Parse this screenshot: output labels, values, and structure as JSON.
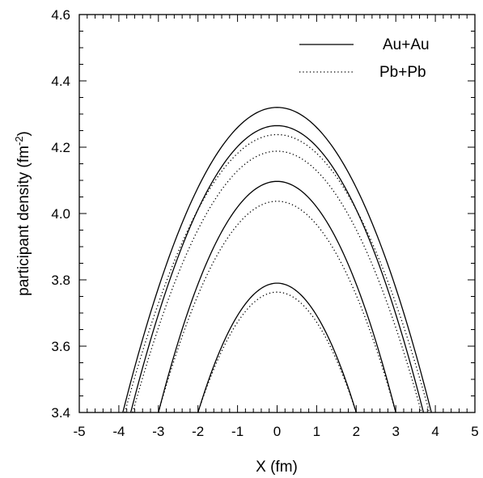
{
  "chart_data": {
    "type": "line",
    "title": "",
    "xlabel": "X (fm)",
    "ylabel": {
      "main": "participant density (fm",
      "sup": "-2",
      "close": ")"
    },
    "xlim": [
      -5,
      5
    ],
    "ylim": [
      3.4,
      4.6
    ],
    "xticks": [
      "-5",
      "-4",
      "-3",
      "-2",
      "-1",
      "0",
      "1",
      "2",
      "3",
      "4",
      "5"
    ],
    "yticks": [
      "3.4",
      "3.6",
      "3.8",
      "4.0",
      "4.2",
      "4.4",
      "4.6"
    ],
    "grid": false,
    "legend_position": "top-right",
    "series": [
      {
        "name": "Au+Au",
        "style": "solid",
        "curves": [
          {
            "peak": 4.32,
            "x_at_bottom": 3.9
          },
          {
            "peak": 4.265,
            "x_at_bottom": 3.7
          },
          {
            "peak": 4.097,
            "x_at_bottom": 3.0
          },
          {
            "peak": 3.79,
            "x_at_bottom": 2.0
          }
        ]
      },
      {
        "name": "Pb+Pb",
        "style": "dotted",
        "curves": [
          {
            "peak": 4.238,
            "x_at_bottom": 3.85
          },
          {
            "peak": 4.188,
            "x_at_bottom": 3.65
          },
          {
            "peak": 4.037,
            "x_at_bottom": 3.0
          },
          {
            "peak": 3.763,
            "x_at_bottom": 2.0
          }
        ]
      }
    ],
    "line_color": "#000000"
  }
}
